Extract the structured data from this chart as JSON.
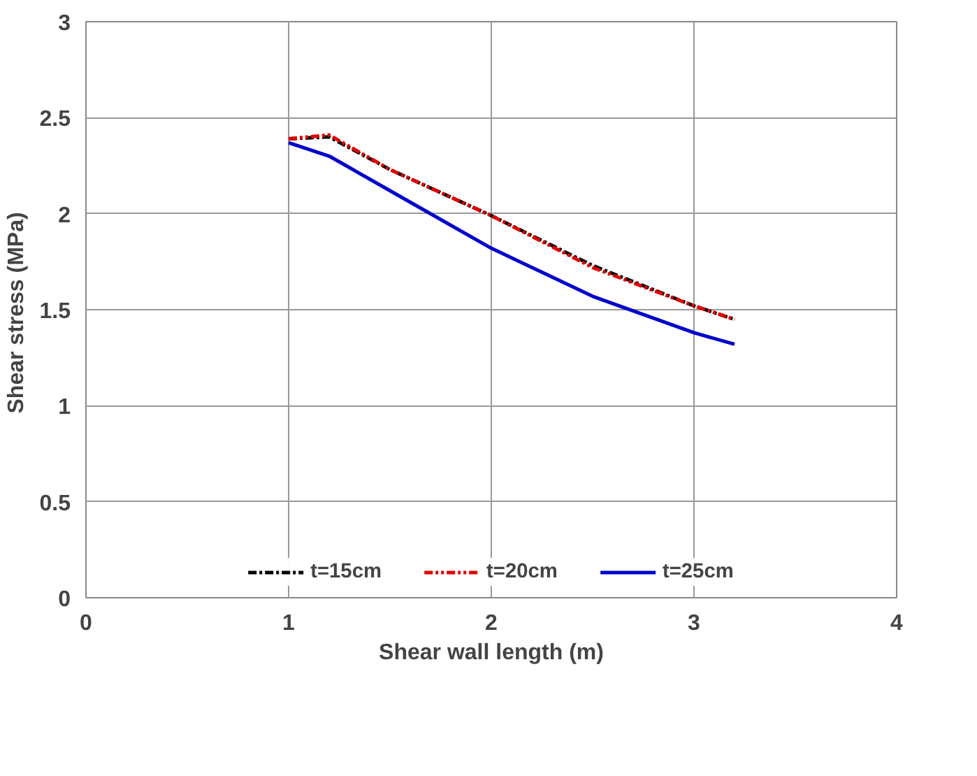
{
  "chart_data": {
    "type": "line",
    "xlabel": "Shear wall length (m)",
    "ylabel": "Shear stress  (MPa)",
    "x": [
      1,
      1.2,
      1.5,
      2,
      2.5,
      3,
      3.2
    ],
    "series": [
      {
        "name": "t=15cm",
        "color": "#000000",
        "line_style": "dashed",
        "values": [
          2.39,
          2.4,
          2.23,
          1.99,
          1.73,
          1.52,
          1.45
        ]
      },
      {
        "name": "t=20cm",
        "color": "#e00000",
        "line_style": "dashed",
        "values": [
          2.39,
          2.41,
          2.23,
          1.99,
          1.72,
          1.52,
          1.45
        ]
      },
      {
        "name": "t=25cm",
        "color": "#0000cc",
        "line_style": "solid",
        "values": [
          2.37,
          2.3,
          2.12,
          1.82,
          1.57,
          1.38,
          1.32
        ]
      }
    ],
    "xlim": [
      0,
      4
    ],
    "xticks": [
      0,
      1,
      2,
      3,
      4
    ],
    "ylim": [
      0,
      3
    ],
    "yticks": [
      0,
      0.5,
      1,
      1.5,
      2,
      2.5,
      3
    ],
    "grid": true,
    "legend": "bottom",
    "marker": "none"
  }
}
